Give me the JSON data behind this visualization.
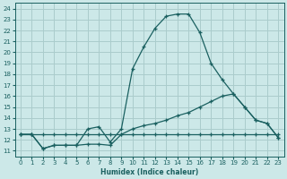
{
  "xlabel": "Humidex (Indice chaleur)",
  "bg_color": "#cce8e8",
  "grid_color": "#aacccc",
  "line_color": "#1a6060",
  "xlim": [
    -0.5,
    23.5
  ],
  "ylim": [
    10.5,
    24.5
  ],
  "xticks": [
    0,
    1,
    2,
    3,
    4,
    5,
    6,
    7,
    8,
    9,
    10,
    11,
    12,
    13,
    14,
    15,
    16,
    17,
    18,
    19,
    20,
    21,
    22,
    23
  ],
  "yticks": [
    11,
    12,
    13,
    14,
    15,
    16,
    17,
    18,
    19,
    20,
    21,
    22,
    23,
    24
  ],
  "line1_x": [
    0,
    1,
    2,
    3,
    4,
    5,
    6,
    7,
    8,
    9,
    10,
    11,
    12,
    13,
    14,
    15,
    16,
    17,
    18,
    19,
    20,
    21,
    22,
    23
  ],
  "line1_y": [
    12.5,
    12.5,
    12.5,
    12.5,
    12.5,
    12.5,
    12.5,
    12.5,
    12.5,
    12.5,
    12.5,
    12.5,
    12.5,
    12.5,
    12.5,
    12.5,
    12.5,
    12.5,
    12.5,
    12.5,
    12.5,
    12.5,
    12.5,
    12.5
  ],
  "line2_x": [
    0,
    1,
    2,
    3,
    4,
    5,
    6,
    7,
    8,
    9,
    10,
    11,
    12,
    13,
    14,
    15,
    16,
    17,
    18,
    19,
    20,
    21,
    22,
    23
  ],
  "line2_y": [
    12.5,
    12.5,
    11.2,
    11.5,
    11.5,
    11.5,
    13.0,
    13.2,
    11.8,
    13.0,
    18.5,
    20.5,
    22.2,
    23.3,
    23.5,
    23.5,
    21.8,
    19.0,
    17.5,
    16.2,
    15.0,
    13.8,
    13.5,
    12.2
  ],
  "line3_x": [
    0,
    1,
    2,
    3,
    4,
    5,
    6,
    7,
    8,
    9,
    10,
    11,
    12,
    13,
    14,
    15,
    16,
    17,
    18,
    19,
    20,
    21,
    22,
    23
  ],
  "line3_y": [
    12.5,
    12.5,
    11.2,
    11.5,
    11.5,
    11.5,
    11.6,
    11.6,
    11.5,
    12.5,
    13.0,
    13.3,
    13.5,
    13.8,
    14.2,
    14.5,
    15.0,
    15.5,
    16.0,
    16.2,
    15.0,
    13.8,
    13.5,
    12.2
  ]
}
